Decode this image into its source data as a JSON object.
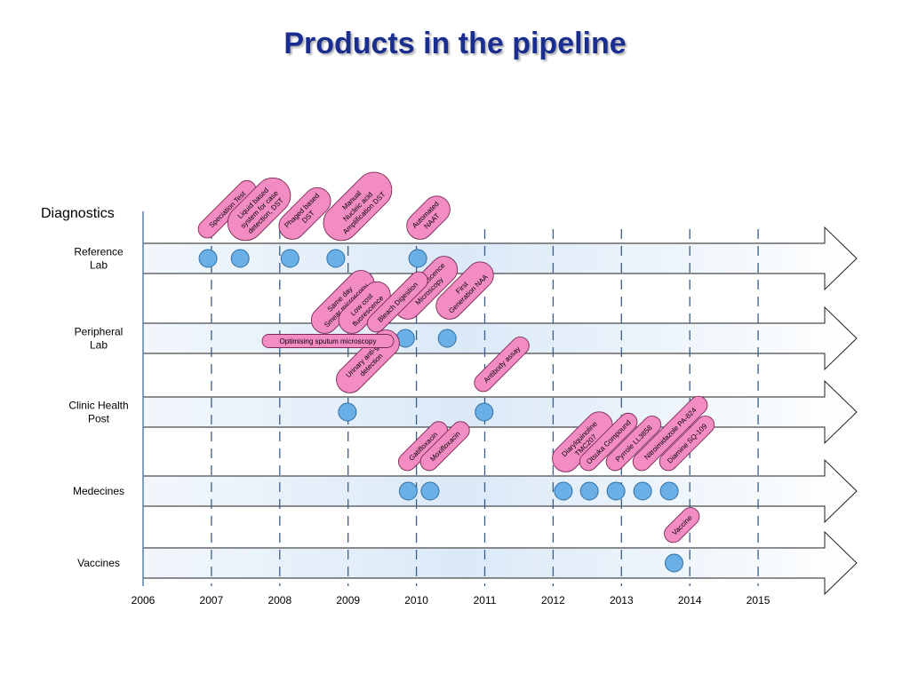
{
  "title": "Products in the pipeline",
  "section_label": "Diagnostics",
  "years": [
    "2006",
    "2007",
    "2008",
    "2009",
    "2010",
    "2011",
    "2012",
    "2013",
    "2014",
    "2015"
  ],
  "rows": [
    {
      "label": [
        "Reference",
        "Lab"
      ]
    },
    {
      "label": [
        "Peripheral",
        "Lab"
      ]
    },
    {
      "label": [
        "Clinic Health",
        "Post"
      ]
    },
    {
      "label": [
        "Medecines"
      ]
    },
    {
      "label": [
        "Vaccines"
      ]
    }
  ],
  "products": [
    {
      "row": 0,
      "year": 2006.95,
      "label": [
        "Speciation Test"
      ]
    },
    {
      "row": 0,
      "year": 2007.42,
      "label": [
        "Liquid based",
        "system for case",
        "detection, DST"
      ]
    },
    {
      "row": 0,
      "year": 2008.15,
      "label": [
        "Phaged based",
        "DST"
      ]
    },
    {
      "row": 0,
      "year": 2008.82,
      "label": [
        "Manual",
        "Nucleic acid",
        "Amplification DST"
      ]
    },
    {
      "row": 0,
      "year": 2010.02,
      "label": [
        "Automated",
        "NAAT"
      ]
    },
    {
      "row": 1,
      "year": 2009.84,
      "label": [
        "LED Fluorescence",
        "Microscopy"
      ]
    },
    {
      "row": 1,
      "year": 2010.45,
      "label": [
        "First",
        "Generation NAA"
      ]
    },
    {
      "row": 2,
      "year": 2008.99,
      "label": [
        "Urinary anti-gen",
        "detection"
      ]
    },
    {
      "row": 2,
      "year": 2010.99,
      "label": [
        "Antibody assay"
      ]
    },
    {
      "row": 3,
      "year": 2009.88,
      "label": [
        "Gatifloxacin"
      ]
    },
    {
      "row": 3,
      "year": 2010.2,
      "label": [
        "Moxifloxacin"
      ]
    },
    {
      "row": 3,
      "year": 2012.15,
      "label": [
        "Diarylquinoline",
        "TMC207"
      ]
    },
    {
      "row": 3,
      "year": 2012.53,
      "label": [
        "Otsuka Compound"
      ]
    },
    {
      "row": 3,
      "year": 2012.92,
      "label": [
        "Pyrrole LL3858"
      ]
    },
    {
      "row": 3,
      "year": 2013.31,
      "label": [
        "Nitroimidazole PA-824"
      ]
    },
    {
      "row": 3,
      "year": 2013.7,
      "label": [
        "Diamine SQ-109"
      ]
    },
    {
      "row": 4,
      "year": 2013.77,
      "label": [
        "Vaccine"
      ]
    }
  ],
  "extra_labels": [
    {
      "row": 1,
      "year": 2008.65,
      "label": [
        "Same day",
        "Smear microscopy"
      ]
    },
    {
      "row": 1,
      "year": 2009.05,
      "label": [
        "Low cost",
        "fluorescence"
      ]
    },
    {
      "row": 1,
      "year": 2009.45,
      "label": [
        "Bleach Digestion"
      ]
    }
  ],
  "horizontal_label": {
    "row": 1,
    "text": "Optimising sputum microscopy"
  },
  "colors": {
    "circle": "#6ab0e6",
    "pill": "#f48cc4",
    "dash": "#3a5f8a",
    "accent": "#1a2e8f"
  }
}
